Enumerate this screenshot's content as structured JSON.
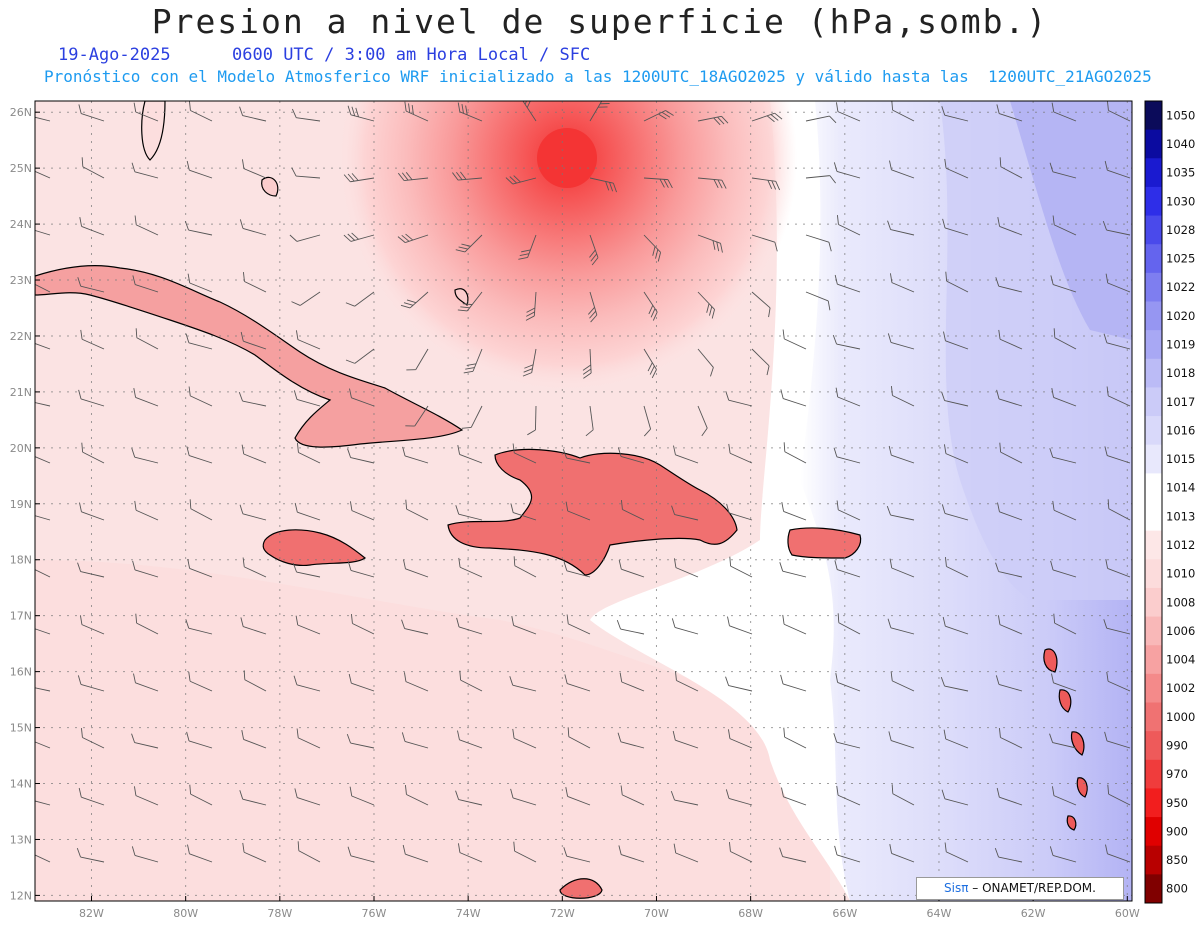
{
  "title": "Presion a nivel de superficie (hPa,somb.)",
  "subtitle_date": "19-Ago-2025",
  "subtitle_time": "0600 UTC / 3:00 am Hora Local / SFC",
  "subtitle_model": "Pronóstico con el Modelo Atmosferico WRF inicializado a las 1200UTC_18AGO2025 y válido hasta las  1200UTC_21AGO2025",
  "map": {
    "lon_range": [
      -83.2,
      -59.9
    ],
    "lat_range": [
      11.9,
      26.2
    ],
    "lat_labels": [
      "26N",
      "25N",
      "24N",
      "23N",
      "22N",
      "21N",
      "20N",
      "19N",
      "18N",
      "17N",
      "16N",
      "15N",
      "14N",
      "13N",
      "12N"
    ],
    "lat_values": [
      26,
      25,
      24,
      23,
      22,
      21,
      20,
      19,
      18,
      17,
      16,
      15,
      14,
      13,
      12
    ],
    "lon_labels": [
      "82W",
      "80W",
      "78W",
      "76W",
      "74W",
      "72W",
      "70W",
      "68W",
      "66W",
      "64W",
      "62W",
      "60W"
    ],
    "lon_values": [
      -82,
      -80,
      -78,
      -76,
      -74,
      -72,
      -70,
      -68,
      -66,
      -64,
      -62,
      -60
    ],
    "features": {
      "low_pressure_center": {
        "lon": -72,
        "lat": 25
      },
      "high_pressure_region": "east"
    }
  },
  "colorbar": {
    "levels": [
      "1050",
      "1040",
      "1035",
      "1030",
      "1028",
      "1025",
      "1022",
      "1020",
      "1019",
      "1018",
      "1017",
      "1016",
      "1015",
      "1014",
      "1013",
      "1012",
      "1010",
      "1008",
      "1006",
      "1004",
      "1002",
      "1000",
      "990",
      "970",
      "950",
      "900",
      "850",
      "800"
    ],
    "colors": [
      "#0b0b5a",
      "#0b0ba0",
      "#1a1ad0",
      "#2e2ee8",
      "#4a4aeb",
      "#6464ee",
      "#7e7ef0",
      "#9696f2",
      "#a8a8f4",
      "#bbbbf6",
      "#cbcbf8",
      "#d9d9fa",
      "#e8e8fc",
      "#ffffff",
      "#ffffff",
      "#fde7e7",
      "#fcdcdc",
      "#fbcdcd",
      "#f9b8b8",
      "#f7a2a2",
      "#f48a8a",
      "#f07272",
      "#ee5a5a",
      "#f03c3c",
      "#f21e1e",
      "#e00000",
      "#b80000",
      "#800000"
    ]
  },
  "credit": {
    "brand": "Sisπ",
    "text": " – ONAMET/REP.DOM."
  }
}
